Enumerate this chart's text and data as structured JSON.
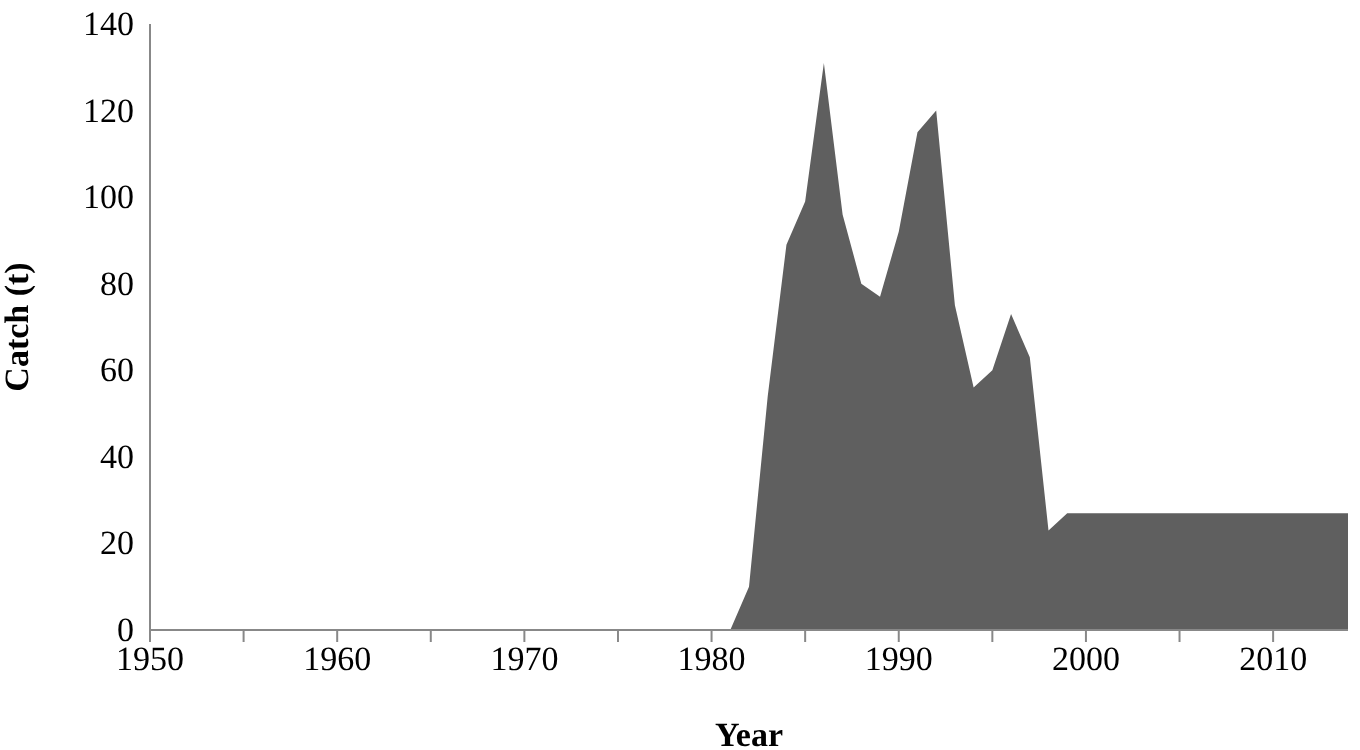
{
  "chart_data": {
    "type": "area",
    "xlabel": "Year",
    "ylabel": "Catch (t)",
    "x": [
      1950,
      1981,
      1982,
      1983,
      1984,
      1985,
      1986,
      1987,
      1988,
      1989,
      1990,
      1991,
      1992,
      1993,
      1994,
      1995,
      1996,
      1997,
      1998,
      1999,
      2014
    ],
    "series": [
      {
        "color": "#5f5f5f",
        "values": [
          0,
          0,
          10,
          54,
          89,
          99,
          131,
          96,
          80,
          77,
          92,
          115,
          120,
          75,
          56,
          60,
          73,
          63,
          23,
          27,
          27
        ]
      }
    ],
    "xlim": [
      1950,
      2014
    ],
    "xticks": [
      1950,
      {
        "value": 1955,
        "label": null
      },
      1960,
      {
        "value": 1965,
        "label": null
      },
      1970,
      {
        "value": 1975,
        "label": null
      },
      1980,
      {
        "value": 1985,
        "label": null
      },
      1990,
      {
        "value": 1995,
        "label": null
      },
      2000,
      {
        "value": 2005,
        "label": null
      },
      2010
    ],
    "ylim": [
      0,
      140
    ],
    "yticks": [
      0,
      20,
      40,
      60,
      80,
      100,
      120,
      140
    ],
    "grid": false,
    "legend": false
  }
}
